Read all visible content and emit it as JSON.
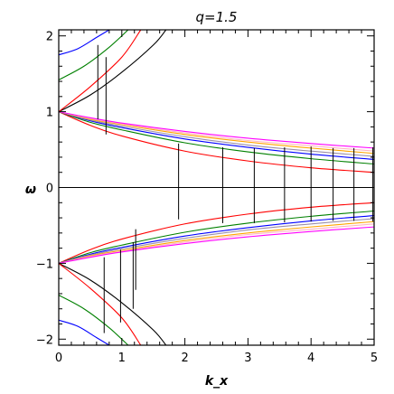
{
  "chart_data": {
    "type": "line",
    "title": "q=1.5",
    "xlabel": "k_x",
    "ylabel": "ω",
    "xlim": [
      0,
      5
    ],
    "ylim": [
      -2.08,
      2.08
    ],
    "xticks": [
      0,
      1,
      2,
      3,
      4,
      5
    ],
    "yticks": [
      -2,
      -1,
      0,
      1,
      2
    ],
    "xtick_labels": [
      "0",
      "1",
      "2",
      "3",
      "4",
      "5"
    ],
    "ytick_labels": [
      "−2",
      "−1",
      "0",
      "1",
      "2"
    ],
    "grid": false,
    "legend": "none",
    "zero_line": {
      "y": 0,
      "color": "#000000"
    },
    "series": [
      {
        "color": "#ff0000",
        "points": [
          [
            0,
            1.0
          ],
          [
            0.5,
            0.82
          ],
          [
            1,
            0.68
          ],
          [
            2,
            0.48
          ],
          [
            3,
            0.35
          ],
          [
            4,
            0.26
          ],
          [
            5,
            0.2
          ]
        ]
      },
      {
        "color": "#008000",
        "points": [
          [
            0,
            1.0
          ],
          [
            0.5,
            0.86
          ],
          [
            1,
            0.76
          ],
          [
            2,
            0.59
          ],
          [
            3,
            0.47
          ],
          [
            4,
            0.38
          ],
          [
            5,
            0.31
          ]
        ]
      },
      {
        "color": "#0000ff",
        "points": [
          [
            0,
            1.0
          ],
          [
            0.5,
            0.88
          ],
          [
            1,
            0.79
          ],
          [
            2,
            0.64
          ],
          [
            3,
            0.53
          ],
          [
            4,
            0.44
          ],
          [
            5,
            0.37
          ]
        ]
      },
      {
        "color": "#9c8fa8",
        "points": [
          [
            0,
            1.0
          ],
          [
            0.5,
            0.89
          ],
          [
            1,
            0.81
          ],
          [
            2,
            0.67
          ],
          [
            3,
            0.56
          ],
          [
            4,
            0.48
          ],
          [
            5,
            0.41
          ]
        ]
      },
      {
        "color": "#ffa500",
        "points": [
          [
            0,
            1.0
          ],
          [
            0.5,
            0.9
          ],
          [
            1,
            0.83
          ],
          [
            2,
            0.7
          ],
          [
            3,
            0.6
          ],
          [
            4,
            0.52
          ],
          [
            5,
            0.45
          ]
        ]
      },
      {
        "color": "#ffb6c1",
        "points": [
          [
            0,
            1.0
          ],
          [
            0.5,
            0.91
          ],
          [
            1,
            0.84
          ],
          [
            2,
            0.72
          ],
          [
            3,
            0.62
          ],
          [
            4,
            0.55
          ],
          [
            5,
            0.48
          ]
        ]
      },
      {
        "color": "#ff00ff",
        "points": [
          [
            0,
            1.0
          ],
          [
            0.5,
            0.92
          ],
          [
            1,
            0.85
          ],
          [
            2,
            0.74
          ],
          [
            3,
            0.65
          ],
          [
            4,
            0.58
          ],
          [
            5,
            0.52
          ]
        ]
      },
      {
        "color": "#ff0000",
        "points": [
          [
            0,
            -1.0
          ],
          [
            0.5,
            -0.82
          ],
          [
            1,
            -0.68
          ],
          [
            2,
            -0.48
          ],
          [
            3,
            -0.35
          ],
          [
            4,
            -0.26
          ],
          [
            5,
            -0.2
          ]
        ]
      },
      {
        "color": "#008000",
        "points": [
          [
            0,
            -1.0
          ],
          [
            0.5,
            -0.86
          ],
          [
            1,
            -0.76
          ],
          [
            2,
            -0.59
          ],
          [
            3,
            -0.47
          ],
          [
            4,
            -0.38
          ],
          [
            5,
            -0.31
          ]
        ]
      },
      {
        "color": "#0000ff",
        "points": [
          [
            0,
            -1.0
          ],
          [
            0.5,
            -0.88
          ],
          [
            1,
            -0.79
          ],
          [
            2,
            -0.64
          ],
          [
            3,
            -0.53
          ],
          [
            4,
            -0.44
          ],
          [
            5,
            -0.37
          ]
        ]
      },
      {
        "color": "#9c8fa8",
        "points": [
          [
            0,
            -1.0
          ],
          [
            0.5,
            -0.89
          ],
          [
            1,
            -0.81
          ],
          [
            2,
            -0.67
          ],
          [
            3,
            -0.56
          ],
          [
            4,
            -0.48
          ],
          [
            5,
            -0.41
          ]
        ]
      },
      {
        "color": "#ffa500",
        "points": [
          [
            0,
            -1.0
          ],
          [
            0.5,
            -0.9
          ],
          [
            1,
            -0.83
          ],
          [
            2,
            -0.7
          ],
          [
            3,
            -0.6
          ],
          [
            4,
            -0.52
          ],
          [
            5,
            -0.45
          ]
        ]
      },
      {
        "color": "#ffb6c1",
        "points": [
          [
            0,
            -1.0
          ],
          [
            0.5,
            -0.91
          ],
          [
            1,
            -0.84
          ],
          [
            2,
            -0.72
          ],
          [
            3,
            -0.62
          ],
          [
            4,
            -0.55
          ],
          [
            5,
            -0.48
          ]
        ]
      },
      {
        "color": "#ff00ff",
        "points": [
          [
            0,
            -1.0
          ],
          [
            0.5,
            -0.92
          ],
          [
            1,
            -0.85
          ],
          [
            2,
            -0.74
          ],
          [
            3,
            -0.65
          ],
          [
            4,
            -0.58
          ],
          [
            5,
            -0.52
          ]
        ]
      },
      {
        "color": "#000000",
        "points": [
          [
            0,
            1.0
          ],
          [
            0.5,
            1.22
          ],
          [
            1,
            1.52
          ],
          [
            1.5,
            1.88
          ],
          [
            1.7,
            2.08
          ]
        ]
      },
      {
        "color": "#ff0000",
        "points": [
          [
            0,
            1.0
          ],
          [
            0.5,
            1.33
          ],
          [
            1,
            1.72
          ],
          [
            1.3,
            2.08
          ]
        ]
      },
      {
        "color": "#008000",
        "points": [
          [
            0,
            1.42
          ],
          [
            0.4,
            1.6
          ],
          [
            0.8,
            1.85
          ],
          [
            1.1,
            2.08
          ]
        ]
      },
      {
        "color": "#0000ff",
        "points": [
          [
            0,
            1.75
          ],
          [
            0.3,
            1.83
          ],
          [
            0.6,
            1.98
          ],
          [
            0.8,
            2.08
          ]
        ]
      },
      {
        "color": "#000000",
        "points": [
          [
            0,
            -1.0
          ],
          [
            0.5,
            -1.22
          ],
          [
            1,
            -1.52
          ],
          [
            1.5,
            -1.88
          ],
          [
            1.7,
            -2.08
          ]
        ]
      },
      {
        "color": "#ff0000",
        "points": [
          [
            0,
            -1.0
          ],
          [
            0.5,
            -1.33
          ],
          [
            1,
            -1.72
          ],
          [
            1.3,
            -2.08
          ]
        ]
      },
      {
        "color": "#008000",
        "points": [
          [
            0,
            -1.42
          ],
          [
            0.4,
            -1.6
          ],
          [
            0.8,
            -1.85
          ],
          [
            1.1,
            -2.08
          ]
        ]
      },
      {
        "color": "#0000ff",
        "points": [
          [
            0,
            -1.75
          ],
          [
            0.3,
            -1.83
          ],
          [
            0.6,
            -1.98
          ],
          [
            0.8,
            -2.08
          ]
        ]
      }
    ],
    "segments": [
      {
        "x": 0.62,
        "y1": 0.9,
        "y2": 1.88,
        "color": "#000000"
      },
      {
        "x": 0.75,
        "y1": 0.7,
        "y2": 1.72,
        "color": "#000000"
      },
      {
        "x": 1.9,
        "y1": -0.42,
        "y2": 0.58,
        "color": "#000000"
      },
      {
        "x": 2.6,
        "y1": -0.47,
        "y2": 0.53,
        "color": "#000000"
      },
      {
        "x": 3.1,
        "y1": -0.47,
        "y2": 0.52,
        "color": "#000000"
      },
      {
        "x": 3.58,
        "y1": -0.46,
        "y2": 0.53,
        "color": "#000000"
      },
      {
        "x": 4.0,
        "y1": -0.45,
        "y2": 0.54,
        "color": "#000000"
      },
      {
        "x": 4.35,
        "y1": -0.44,
        "y2": 0.52,
        "color": "#000000"
      },
      {
        "x": 4.68,
        "y1": -0.44,
        "y2": 0.52,
        "color": "#000000"
      },
      {
        "x": 4.98,
        "y1": -0.45,
        "y2": 0.53,
        "color": "#000000"
      },
      {
        "x": 0.72,
        "y1": -1.92,
        "y2": -0.92,
        "color": "#000000"
      },
      {
        "x": 0.98,
        "y1": -1.78,
        "y2": -0.82,
        "color": "#000000"
      },
      {
        "x": 1.18,
        "y1": -1.6,
        "y2": -0.72,
        "color": "#000000"
      },
      {
        "x": 1.22,
        "y1": -1.35,
        "y2": -0.55,
        "color": "#000000"
      }
    ]
  }
}
